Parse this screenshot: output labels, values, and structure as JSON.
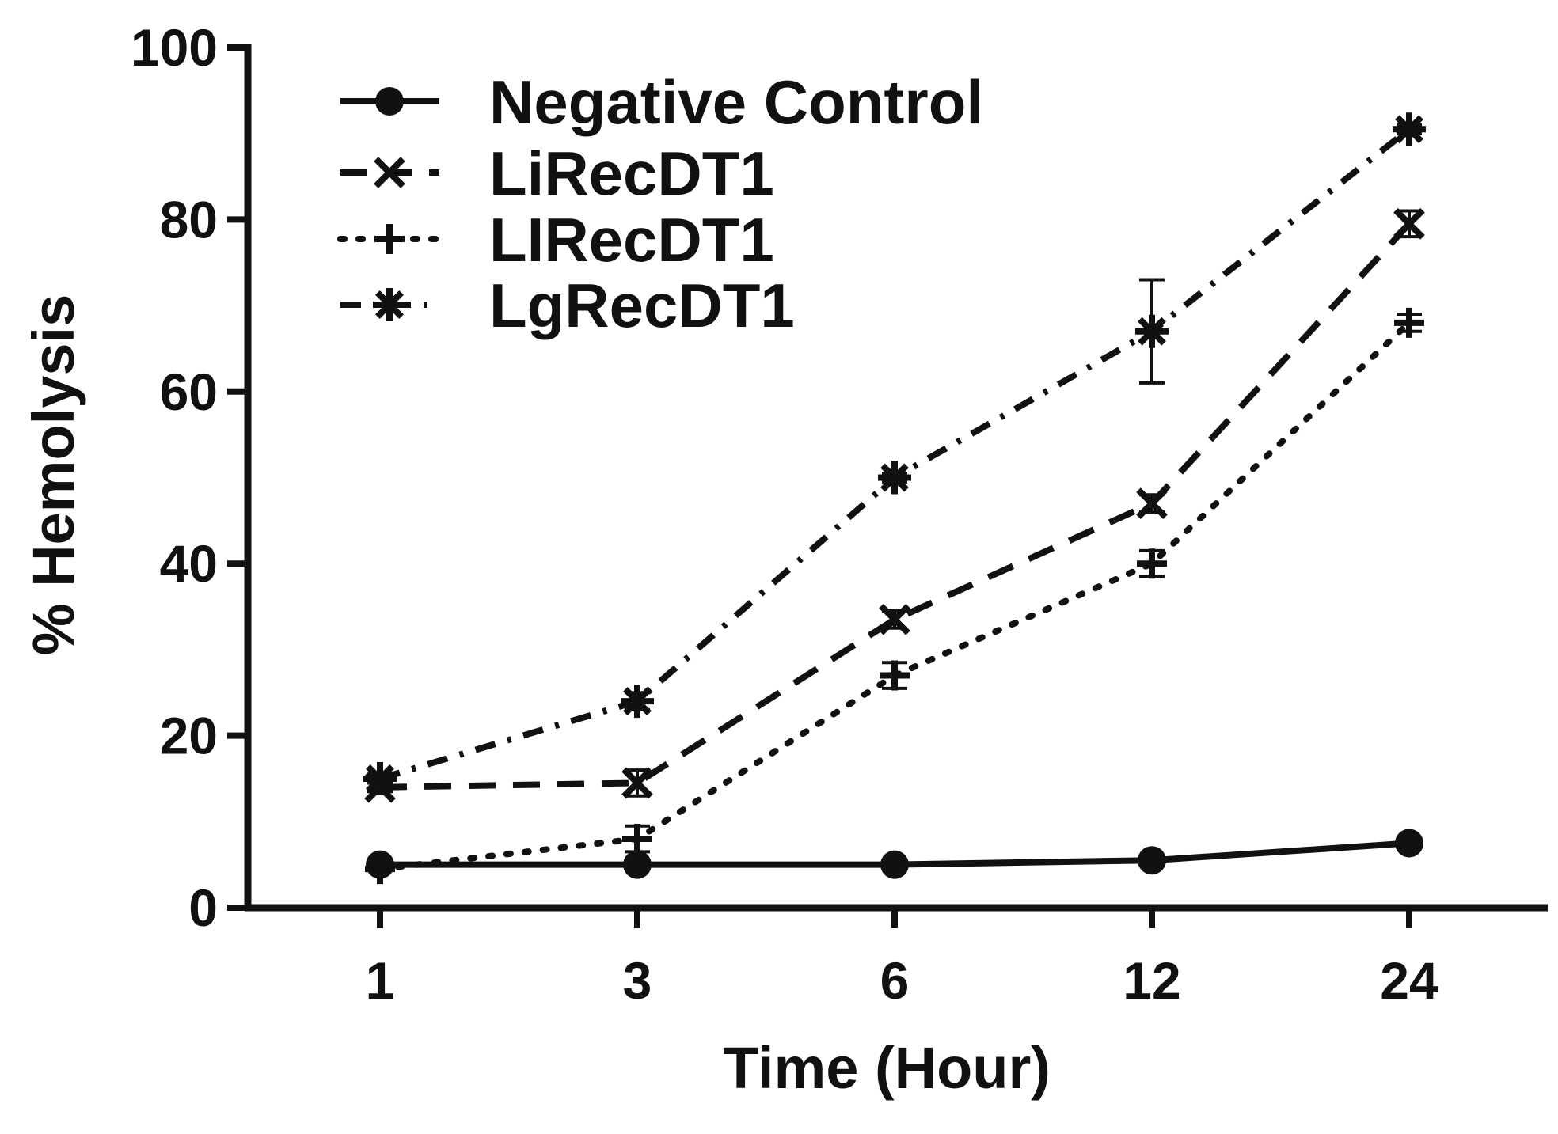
{
  "chart_data": {
    "type": "line",
    "title": "",
    "xlabel": "Time (Hour)",
    "ylabel": "% Hemolysis",
    "categories": [
      "1",
      "3",
      "6",
      "12",
      "24"
    ],
    "ylim": [
      0,
      100
    ],
    "yticks": [
      0,
      20,
      40,
      60,
      80,
      100
    ],
    "grid": false,
    "legend_position": "top-left",
    "series": [
      {
        "name": "Negative Control",
        "marker": "circle",
        "dash": "solid",
        "values": [
          5,
          5,
          5,
          5.5,
          7.5
        ],
        "errors": [
          0,
          0,
          0,
          0,
          0
        ]
      },
      {
        "name": "LiRecDT1",
        "marker": "x",
        "dash": "dashed",
        "values": [
          14,
          14.5,
          33.5,
          47,
          79.5
        ],
        "errors": [
          0.5,
          1.5,
          1,
          1,
          1.5
        ]
      },
      {
        "name": "LIRecDT1",
        "marker": "plus",
        "dash": "dotted",
        "values": [
          4.5,
          8,
          27,
          40,
          68
        ],
        "errors": [
          0,
          1.5,
          1.5,
          1.5,
          1
        ]
      },
      {
        "name": "LgRecDT1",
        "marker": "asterisk",
        "dash": "dashdot",
        "values": [
          15,
          24,
          50,
          67,
          90.5
        ],
        "errors": [
          0.5,
          1,
          0.5,
          6,
          0.5
        ]
      }
    ]
  }
}
